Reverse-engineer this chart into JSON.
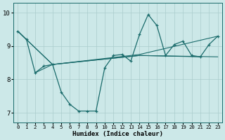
{
  "xlabel": "Humidex (Indice chaleur)",
  "xlim": [
    -0.5,
    23.5
  ],
  "ylim": [
    6.7,
    10.3
  ],
  "yticks": [
    7,
    8,
    9,
    10
  ],
  "xticks": [
    0,
    1,
    2,
    3,
    4,
    5,
    6,
    7,
    8,
    9,
    10,
    11,
    12,
    13,
    14,
    15,
    16,
    17,
    18,
    19,
    20,
    21,
    22,
    23
  ],
  "bg_color": "#cce8e8",
  "line_color": "#1a6b6b",
  "grid_color": "#aacccc",
  "series_main": {
    "x": [
      0,
      1,
      2,
      3,
      4,
      5,
      6,
      7,
      8,
      9,
      10,
      11,
      12,
      13,
      14,
      15,
      16,
      17,
      18,
      19,
      20,
      21,
      22,
      23
    ],
    "y": [
      9.45,
      9.2,
      8.2,
      8.4,
      8.45,
      7.62,
      7.25,
      7.05,
      7.05,
      7.05,
      8.35,
      8.72,
      8.75,
      8.55,
      9.35,
      9.95,
      9.62,
      8.72,
      9.05,
      9.15,
      8.72,
      8.68,
      9.05,
      9.3
    ]
  },
  "series_lines": [
    {
      "x": [
        0,
        4,
        14,
        23
      ],
      "y": [
        9.45,
        8.45,
        8.75,
        9.3
      ]
    },
    {
      "x": [
        0,
        4,
        14,
        23
      ],
      "y": [
        9.45,
        8.45,
        8.72,
        8.68
      ]
    },
    {
      "x": [
        2,
        4,
        14,
        21
      ],
      "y": [
        8.2,
        8.45,
        8.72,
        8.68
      ]
    }
  ]
}
